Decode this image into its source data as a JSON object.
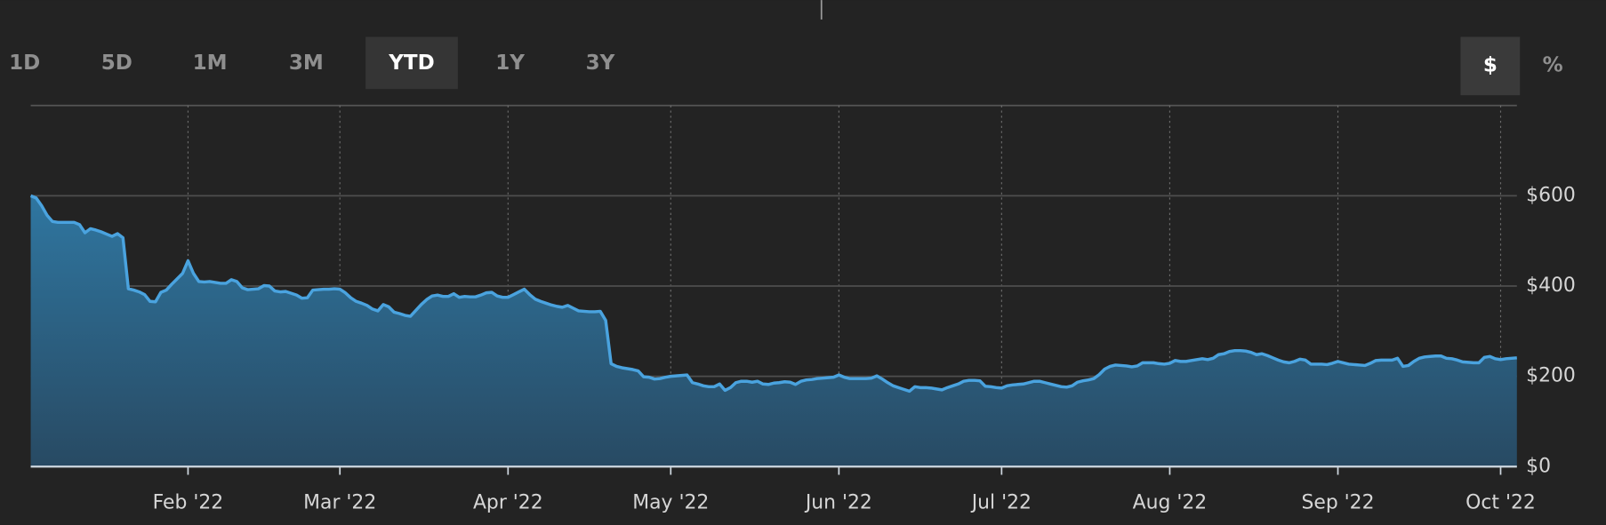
{
  "controls": {
    "ranges": [
      "1D",
      "5D",
      "1M",
      "3M",
      "YTD",
      "1Y",
      "3Y"
    ],
    "active_range": "YTD",
    "units": [
      "$",
      "%"
    ],
    "active_unit": "$"
  },
  "chart_data": {
    "type": "area",
    "categories": [
      null,
      null,
      null,
      null,
      null,
      null,
      null,
      null,
      null,
      null,
      null,
      null,
      null,
      null,
      null,
      null,
      null,
      null,
      null,
      null,
      null,
      null,
      null,
      null,
      null,
      null,
      null,
      null,
      null,
      "Feb '22",
      null,
      null,
      null,
      null,
      null,
      null,
      null,
      null,
      null,
      null,
      null,
      null,
      null,
      null,
      null,
      null,
      null,
      null,
      null,
      null,
      null,
      null,
      null,
      null,
      null,
      null,
      null,
      "Mar '22",
      null,
      null,
      null,
      null,
      null,
      null,
      null,
      null,
      null,
      null,
      null,
      null,
      null,
      null,
      null,
      null,
      null,
      null,
      null,
      null,
      null,
      null,
      null,
      null,
      null,
      null,
      null,
      null,
      null,
      null,
      "Apr '22",
      null,
      null,
      null,
      null,
      null,
      null,
      null,
      null,
      null,
      null,
      null,
      null,
      null,
      null,
      null,
      null,
      null,
      null,
      null,
      null,
      null,
      null,
      null,
      null,
      null,
      null,
      null,
      null,
      null,
      "May '22",
      null,
      null,
      null,
      null,
      null,
      null,
      null,
      null,
      null,
      null,
      null,
      null,
      null,
      null,
      null,
      null,
      null,
      null,
      null,
      null,
      null,
      null,
      null,
      null,
      null,
      null,
      null,
      null,
      null,
      null,
      "Jun '22",
      null,
      null,
      null,
      null,
      null,
      null,
      null,
      null,
      null,
      null,
      null,
      null,
      null,
      null,
      null,
      null,
      null,
      null,
      null,
      null,
      null,
      null,
      null,
      null,
      null,
      null,
      null,
      null,
      null,
      "Jul '22",
      null,
      null,
      null,
      null,
      null,
      null,
      null,
      null,
      null,
      null,
      null,
      null,
      null,
      null,
      null,
      null,
      null,
      null,
      null,
      null,
      null,
      null,
      null,
      null,
      null,
      null,
      null,
      null,
      null,
      null,
      "Aug '22",
      null,
      null,
      null,
      null,
      null,
      null,
      null,
      null,
      null,
      null,
      null,
      null,
      null,
      null,
      null,
      null,
      null,
      null,
      null,
      null,
      null,
      null,
      null,
      null,
      null,
      null,
      null,
      null,
      null,
      null,
      "Sep '22",
      null,
      null,
      null,
      null,
      null,
      null,
      null,
      null,
      null,
      null,
      null,
      null,
      null,
      null,
      null,
      null,
      null,
      null,
      null,
      null,
      null,
      null,
      null,
      null,
      null,
      null,
      null,
      null,
      null,
      "Oct '22",
      null,
      null,
      null
    ],
    "series": [
      {
        "color": "#4aa3df",
        "values": [
          600,
          595,
          578,
          557,
          543,
          541,
          541,
          541,
          541,
          536,
          518,
          527,
          524,
          520,
          515,
          510,
          516,
          507,
          394,
          391,
          387,
          381,
          366,
          365,
          386,
          391,
          404,
          416,
          428,
          456,
          428,
          410,
          409,
          410,
          408,
          406,
          406,
          414,
          410,
          396,
          392,
          393,
          394,
          401,
          400,
          389,
          387,
          388,
          384,
          380,
          373,
          374,
          391,
          392,
          393,
          393,
          394,
          393,
          385,
          374,
          366,
          362,
          357,
          349,
          345,
          359,
          354,
          342,
          339,
          335,
          333,
          346,
          359,
          370,
          378,
          380,
          377,
          377,
          383,
          375,
          377,
          376,
          376,
          380,
          385,
          386,
          378,
          375,
          375,
          381,
          387,
          393,
          381,
          371,
          366,
          362,
          358,
          355,
          353,
          357,
          351,
          345,
          344,
          343,
          343,
          344,
          324,
          228,
          222,
          219,
          217,
          215,
          212,
          199,
          198,
          194,
          195,
          198,
          200,
          201,
          202,
          203,
          186,
          183,
          179,
          177,
          177,
          183,
          169,
          175,
          186,
          189,
          189,
          187,
          189,
          183,
          182,
          185,
          186,
          188,
          187,
          182,
          189,
          192,
          193,
          195,
          196,
          197,
          198,
          203,
          198,
          195,
          195,
          195,
          195,
          196,
          201,
          194,
          186,
          179,
          175,
          171,
          167,
          177,
          175,
          175,
          174,
          172,
          170,
          175,
          179,
          183,
          189,
          191,
          191,
          190,
          178,
          177,
          175,
          174,
          179,
          181,
          182,
          183,
          186,
          189,
          189,
          186,
          183,
          180,
          177,
          176,
          179,
          187,
          190,
          192,
          195,
          204,
          216,
          222,
          225,
          224,
          223,
          221,
          223,
          230,
          230,
          230,
          228,
          227,
          229,
          235,
          233,
          233,
          235,
          237,
          239,
          237,
          240,
          248,
          250,
          255,
          257,
          257,
          256,
          253,
          248,
          250,
          246,
          241,
          236,
          232,
          230,
          233,
          238,
          236,
          227,
          227,
          227,
          226,
          229,
          233,
          230,
          227,
          226,
          225,
          224,
          229,
          235,
          236,
          236,
          236,
          240,
          222,
          224,
          233,
          240,
          243,
          244,
          245,
          245,
          240,
          239,
          236,
          232,
          231,
          230,
          230,
          242,
          244,
          239,
          237,
          239,
          240,
          241
        ]
      }
    ],
    "ylim": [
      0,
      800
    ],
    "yticks": [
      {
        "value": 0,
        "label": "$0"
      },
      {
        "value": 200,
        "label": "$200"
      },
      {
        "value": 400,
        "label": "$400"
      },
      {
        "value": 600,
        "label": "$600"
      }
    ],
    "grid": true
  }
}
